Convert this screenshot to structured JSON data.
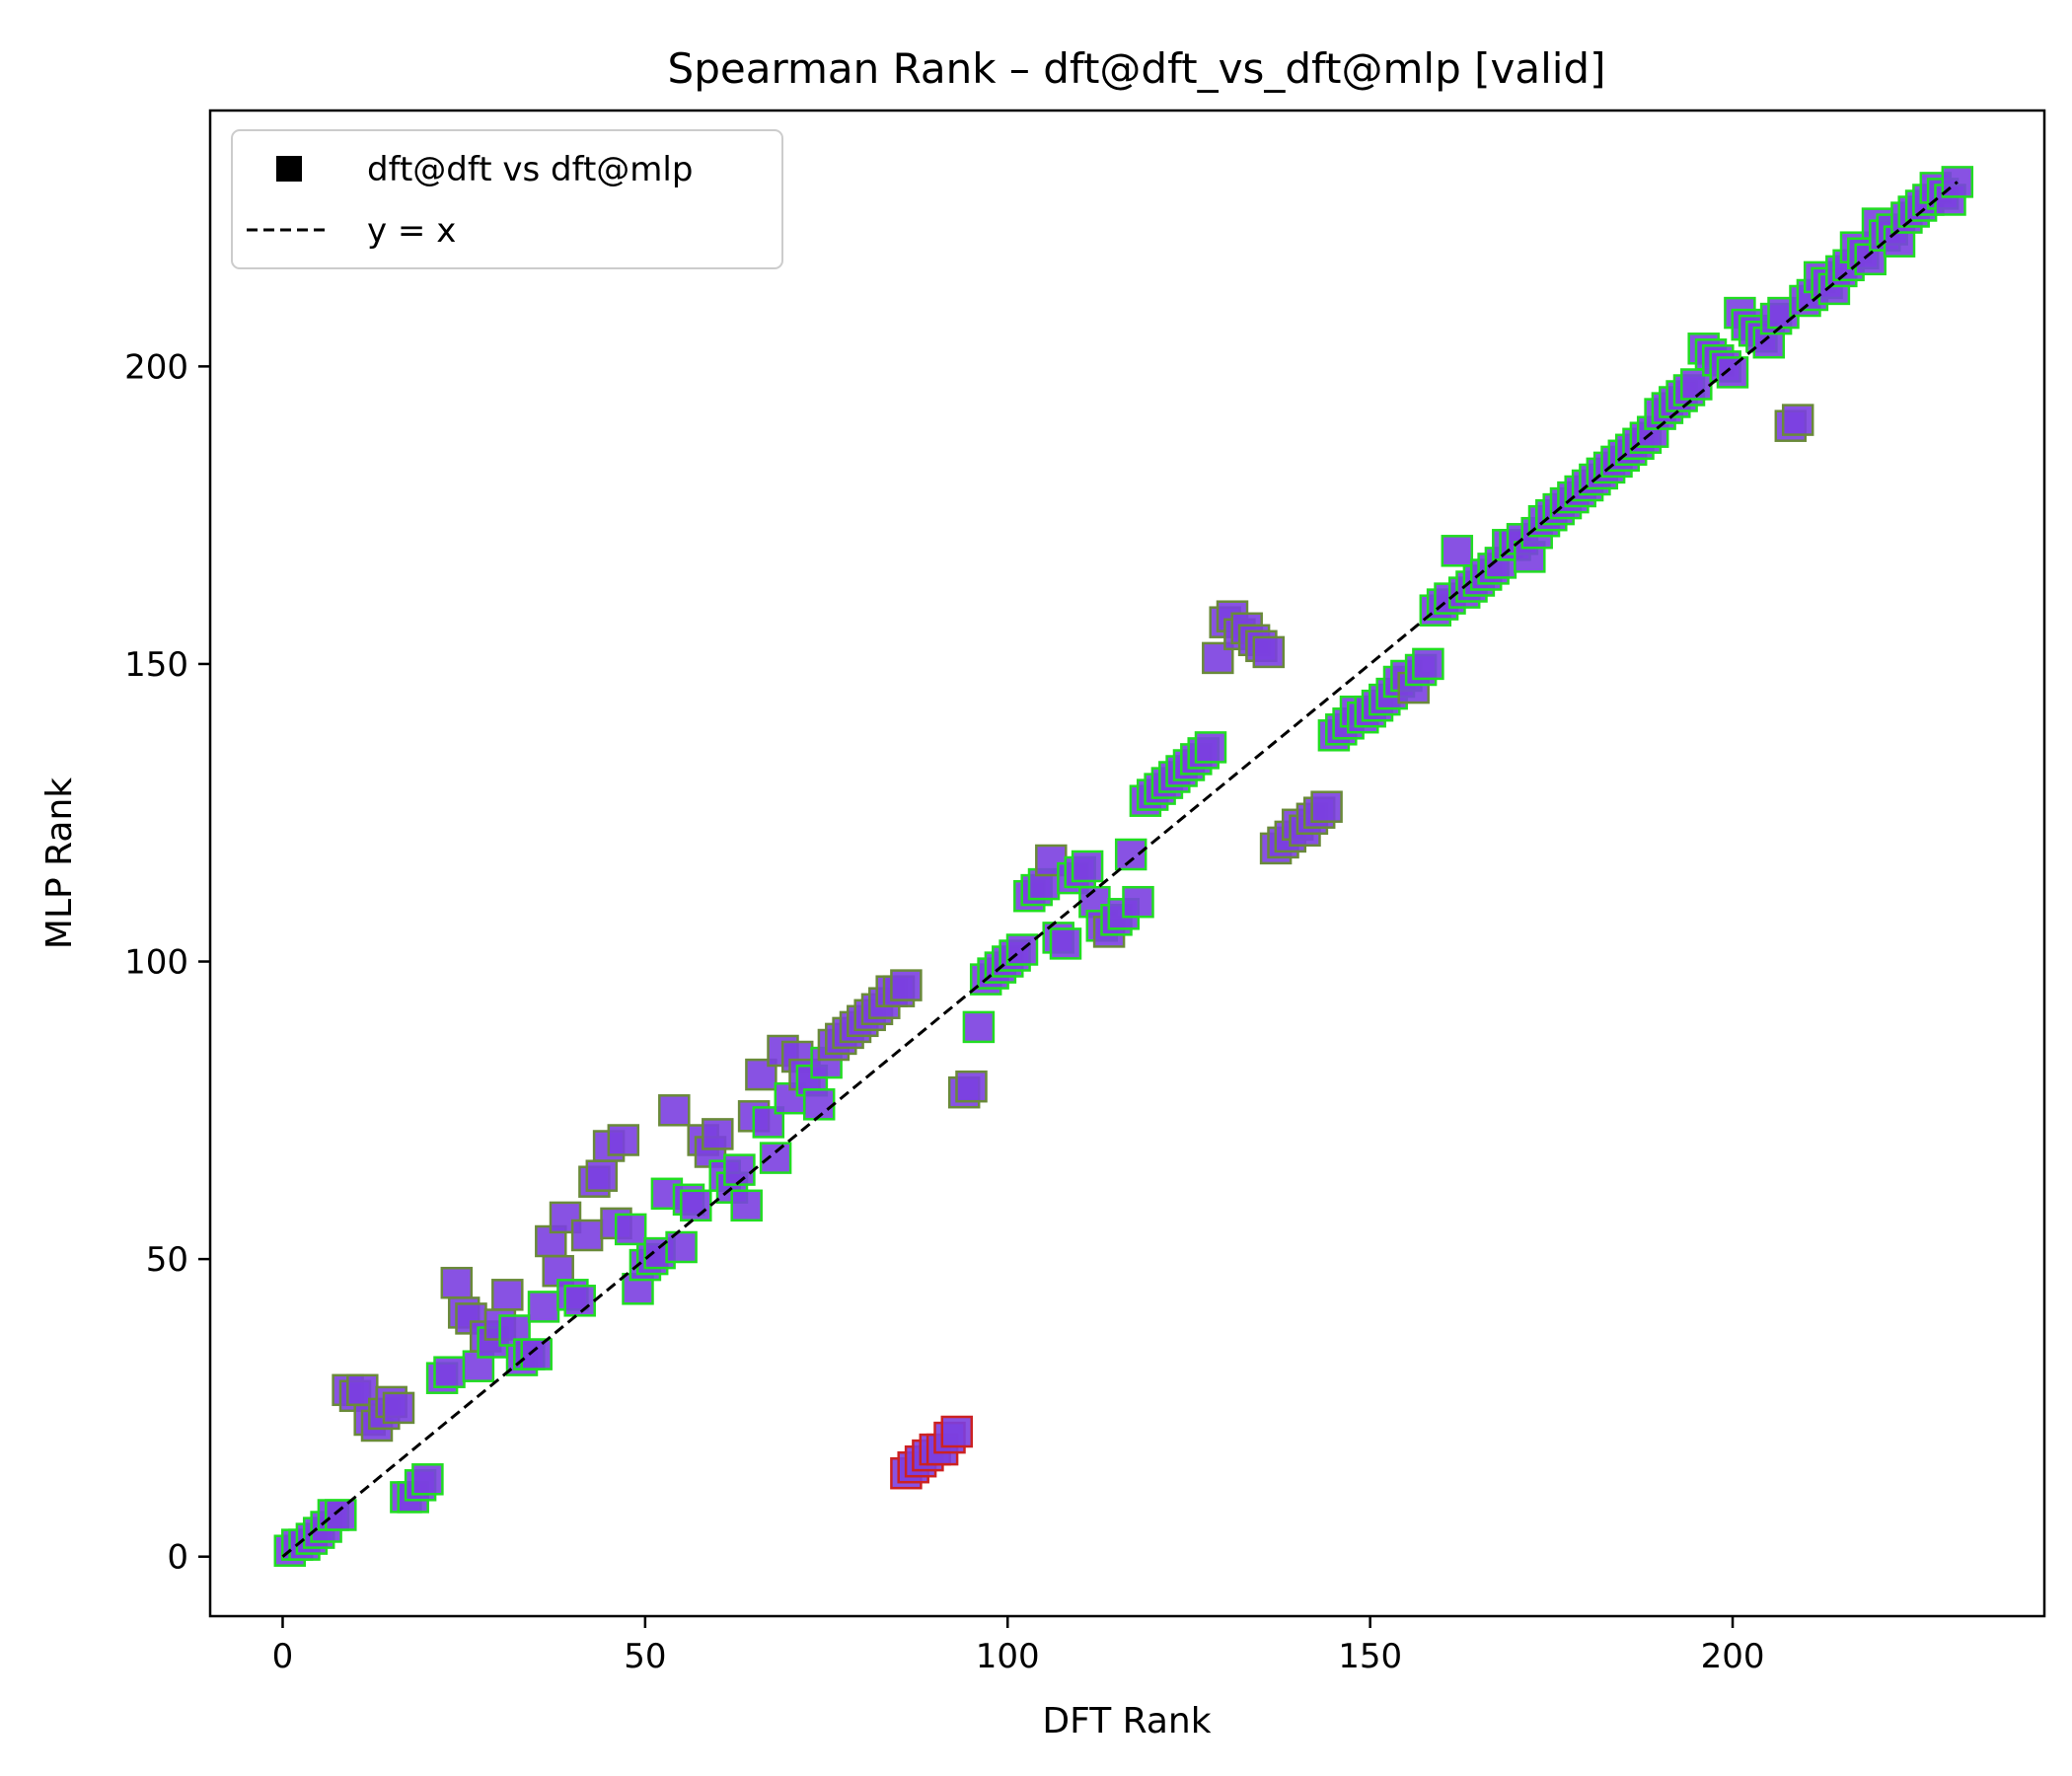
{
  "chart_data": {
    "type": "scatter",
    "title": "Spearman Rank – dft@dft_vs_dft@mlp [valid]",
    "xlabel": "DFT Rank",
    "ylabel": "MLP Rank",
    "xlim": [
      -10,
      243
    ],
    "ylim": [
      -10,
      243
    ],
    "xticks": [
      "0",
      "50",
      "100",
      "150",
      "200"
    ],
    "yticks": [
      "0",
      "50",
      "100",
      "150",
      "200"
    ],
    "legend_position": "top-left",
    "colors": {
      "marker_fill": "#7b3fe0",
      "edge_close": "#22dd22",
      "edge_far": "#cc2222",
      "reference_line": "#000000"
    },
    "series": [
      {
        "name": "dft@dft vs dft@mlp",
        "marker": "square",
        "points": [
          [
            1,
            1
          ],
          [
            2,
            2
          ],
          [
            3,
            2
          ],
          [
            4,
            3
          ],
          [
            5,
            4
          ],
          [
            6,
            5
          ],
          [
            7,
            7
          ],
          [
            8,
            7
          ],
          [
            9,
            28
          ],
          [
            10,
            27
          ],
          [
            11,
            28
          ],
          [
            12,
            23
          ],
          [
            13,
            22
          ],
          [
            14,
            24
          ],
          [
            15,
            26
          ],
          [
            16,
            25
          ],
          [
            17,
            10
          ],
          [
            18,
            10
          ],
          [
            19,
            12
          ],
          [
            20,
            13
          ],
          [
            22,
            30
          ],
          [
            23,
            31
          ],
          [
            24,
            46
          ],
          [
            25,
            41
          ],
          [
            26,
            40
          ],
          [
            27,
            32
          ],
          [
            28,
            37
          ],
          [
            29,
            36
          ],
          [
            30,
            39
          ],
          [
            31,
            44
          ],
          [
            32,
            38
          ],
          [
            33,
            33
          ],
          [
            34,
            34
          ],
          [
            35,
            34
          ],
          [
            36,
            42
          ],
          [
            37,
            53
          ],
          [
            38,
            48
          ],
          [
            39,
            57
          ],
          [
            40,
            44
          ],
          [
            41,
            43
          ],
          [
            42,
            54
          ],
          [
            43,
            63
          ],
          [
            44,
            64
          ],
          [
            45,
            69
          ],
          [
            46,
            56
          ],
          [
            47,
            70
          ],
          [
            48,
            55
          ],
          [
            49,
            45
          ],
          [
            50,
            49
          ],
          [
            51,
            50
          ],
          [
            52,
            51
          ],
          [
            53,
            61
          ],
          [
            54,
            75
          ],
          [
            55,
            52
          ],
          [
            56,
            60
          ],
          [
            57,
            59
          ],
          [
            58,
            70
          ],
          [
            59,
            68
          ],
          [
            60,
            71
          ],
          [
            61,
            64
          ],
          [
            62,
            62
          ],
          [
            63,
            65
          ],
          [
            64,
            59
          ],
          [
            65,
            74
          ],
          [
            66,
            81
          ],
          [
            67,
            73
          ],
          [
            68,
            67
          ],
          [
            69,
            85
          ],
          [
            70,
            77
          ],
          [
            71,
            84
          ],
          [
            72,
            81
          ],
          [
            73,
            80
          ],
          [
            74,
            76
          ],
          [
            75,
            83
          ],
          [
            76,
            86
          ],
          [
            77,
            87
          ],
          [
            78,
            88
          ],
          [
            79,
            89
          ],
          [
            80,
            90
          ],
          [
            81,
            91
          ],
          [
            82,
            92
          ],
          [
            83,
            93
          ],
          [
            84,
            95
          ],
          [
            85,
            95
          ],
          [
            86,
            96
          ],
          [
            86,
            14
          ],
          [
            87,
            15
          ],
          [
            88,
            16
          ],
          [
            89,
            17
          ],
          [
            90,
            18
          ],
          [
            91,
            18
          ],
          [
            92,
            20
          ],
          [
            93,
            21
          ],
          [
            94,
            78
          ],
          [
            95,
            79
          ],
          [
            96,
            89
          ],
          [
            97,
            97
          ],
          [
            98,
            98
          ],
          [
            99,
            99
          ],
          [
            100,
            100
          ],
          [
            101,
            101
          ],
          [
            102,
            102
          ],
          [
            103,
            111
          ],
          [
            104,
            112
          ],
          [
            105,
            113
          ],
          [
            106,
            117
          ],
          [
            107,
            104
          ],
          [
            108,
            103
          ],
          [
            109,
            114
          ],
          [
            110,
            115
          ],
          [
            111,
            116
          ],
          [
            112,
            110
          ],
          [
            113,
            106
          ],
          [
            114,
            105
          ],
          [
            115,
            107
          ],
          [
            116,
            108
          ],
          [
            117,
            118
          ],
          [
            118,
            110
          ],
          [
            119,
            127
          ],
          [
            120,
            128
          ],
          [
            121,
            129
          ],
          [
            122,
            130
          ],
          [
            123,
            131
          ],
          [
            124,
            132
          ],
          [
            125,
            133
          ],
          [
            126,
            134
          ],
          [
            127,
            135
          ],
          [
            128,
            136
          ],
          [
            129,
            151
          ],
          [
            130,
            157
          ],
          [
            131,
            158
          ],
          [
            132,
            155
          ],
          [
            133,
            156
          ],
          [
            134,
            154
          ],
          [
            135,
            153
          ],
          [
            136,
            152
          ],
          [
            137,
            119
          ],
          [
            138,
            120
          ],
          [
            139,
            121
          ],
          [
            140,
            123
          ],
          [
            141,
            122
          ],
          [
            142,
            124
          ],
          [
            143,
            125
          ],
          [
            144,
            126
          ],
          [
            145,
            138
          ],
          [
            146,
            139
          ],
          [
            147,
            140
          ],
          [
            148,
            142
          ],
          [
            149,
            141
          ],
          [
            150,
            142
          ],
          [
            151,
            143
          ],
          [
            152,
            144
          ],
          [
            153,
            145
          ],
          [
            154,
            147
          ],
          [
            155,
            148
          ],
          [
            156,
            146
          ],
          [
            157,
            149
          ],
          [
            158,
            150
          ],
          [
            159,
            159
          ],
          [
            160,
            160
          ],
          [
            161,
            161
          ],
          [
            162,
            169
          ],
          [
            163,
            162
          ],
          [
            164,
            163
          ],
          [
            165,
            164
          ],
          [
            166,
            165
          ],
          [
            167,
            166
          ],
          [
            168,
            167
          ],
          [
            169,
            170
          ],
          [
            170,
            170
          ],
          [
            171,
            171
          ],
          [
            172,
            168
          ],
          [
            173,
            172
          ],
          [
            174,
            174
          ],
          [
            175,
            175
          ],
          [
            176,
            176
          ],
          [
            177,
            177
          ],
          [
            178,
            178
          ],
          [
            179,
            179
          ],
          [
            180,
            180
          ],
          [
            181,
            181
          ],
          [
            182,
            182
          ],
          [
            183,
            183
          ],
          [
            184,
            184
          ],
          [
            185,
            185
          ],
          [
            186,
            186
          ],
          [
            187,
            187
          ],
          [
            188,
            188
          ],
          [
            189,
            189
          ],
          [
            190,
            192
          ],
          [
            191,
            193
          ],
          [
            192,
            194
          ],
          [
            193,
            195
          ],
          [
            194,
            196
          ],
          [
            195,
            197
          ],
          [
            196,
            203
          ],
          [
            197,
            202
          ],
          [
            198,
            201
          ],
          [
            199,
            200
          ],
          [
            200,
            199
          ],
          [
            201,
            209
          ],
          [
            202,
            207
          ],
          [
            203,
            206
          ],
          [
            204,
            205
          ],
          [
            205,
            204
          ],
          [
            206,
            208
          ],
          [
            207,
            209
          ],
          [
            208,
            190
          ],
          [
            209,
            191
          ],
          [
            210,
            211
          ],
          [
            211,
            212
          ],
          [
            212,
            215
          ],
          [
            213,
            214
          ],
          [
            214,
            213
          ],
          [
            215,
            216
          ],
          [
            216,
            217
          ],
          [
            217,
            220
          ],
          [
            218,
            219
          ],
          [
            219,
            218
          ],
          [
            220,
            224
          ],
          [
            221,
            222
          ],
          [
            222,
            223
          ],
          [
            223,
            221
          ],
          [
            224,
            225
          ],
          [
            225,
            226
          ],
          [
            226,
            227
          ],
          [
            227,
            228
          ],
          [
            228,
            230
          ],
          [
            229,
            229
          ],
          [
            230,
            228
          ],
          [
            231,
            231
          ]
        ]
      }
    ],
    "reference_line": {
      "name": "y = x",
      "style": "dashed",
      "from": [
        0,
        0
      ],
      "to": [
        231,
        231
      ]
    }
  }
}
